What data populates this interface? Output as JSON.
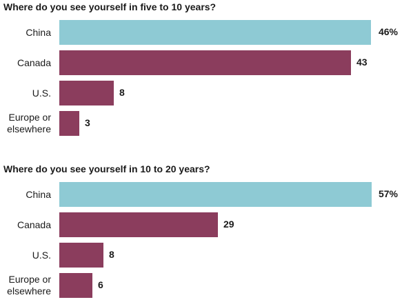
{
  "colors": {
    "highlight": "#8ecad4",
    "other": "#8b3d5d"
  },
  "chart_data": [
    {
      "type": "bar",
      "orientation": "horizontal",
      "title": "Where do you see yourself in five to 10 years?",
      "categories": [
        "China",
        "Canada",
        "U.S.",
        "Europe or elsewhere"
      ],
      "category_lines": [
        [
          "China"
        ],
        [
          "Canada"
        ],
        [
          "U.S."
        ],
        [
          "Europe or",
          "elsewhere"
        ]
      ],
      "values": [
        46,
        43,
        8,
        3
      ],
      "value_labels": [
        "46%",
        "43",
        "8",
        "3"
      ],
      "unit": "%",
      "xlim": [
        0,
        46
      ]
    },
    {
      "type": "bar",
      "orientation": "horizontal",
      "title": "Where do you see yourself in 10 to 20 years?",
      "categories": [
        "China",
        "Canada",
        "U.S.",
        "Europe or elsewhere"
      ],
      "category_lines": [
        [
          "China"
        ],
        [
          "Canada"
        ],
        [
          "U.S."
        ],
        [
          "Europe or",
          "elsewhere"
        ]
      ],
      "values": [
        57,
        29,
        8,
        6
      ],
      "value_labels": [
        "57%",
        "29",
        "8",
        "6"
      ],
      "unit": "%",
      "xlim": [
        0,
        57
      ]
    }
  ]
}
